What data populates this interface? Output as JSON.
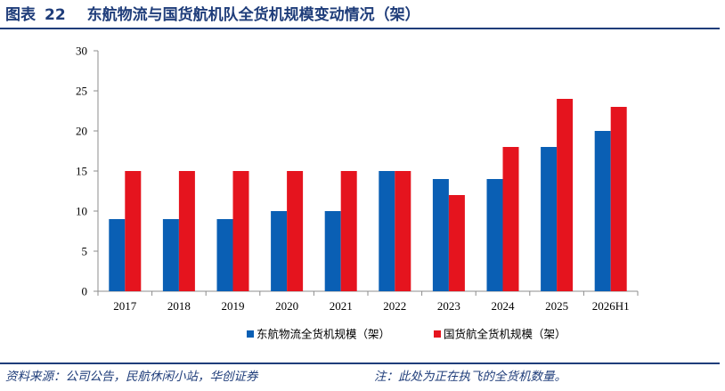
{
  "figure": {
    "label": "图表",
    "number": "22",
    "title": "东航物流与国货航机队全货机规模变动情况（架）"
  },
  "source": "资料来源：公司公告，民航休闲小站，华创证券",
  "note": "注：此处为正在执飞的全货机数量。",
  "chart_data": {
    "type": "bar",
    "categories": [
      "2017",
      "2018",
      "2019",
      "2020",
      "2021",
      "2022",
      "2023",
      "2024",
      "2025",
      "2026H1"
    ],
    "series": [
      {
        "name": "东航物流全货机规模（架）",
        "color": "#0a5fb4",
        "values": [
          9,
          9,
          9,
          10,
          10,
          15,
          14,
          14,
          18,
          20
        ]
      },
      {
        "name": "国货航全货机规模（架）",
        "color": "#e5141e",
        "values": [
          15,
          15,
          15,
          15,
          15,
          15,
          12,
          18,
          24,
          23
        ]
      }
    ],
    "ylim": [
      0,
      30
    ],
    "yticks": [
      0,
      5,
      10,
      15,
      20,
      25,
      30
    ],
    "grid": false,
    "legend_position": "bottom"
  }
}
